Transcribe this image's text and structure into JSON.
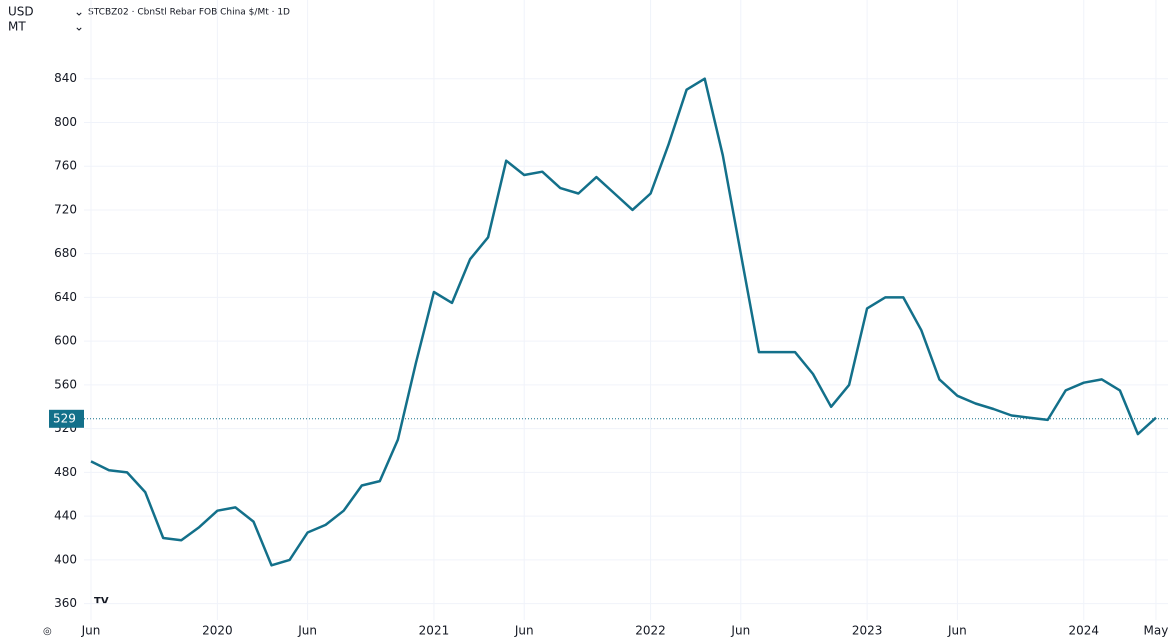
{
  "chart_data": {
    "type": "line",
    "title": "STCBZ02 · CbnStl Rebar FOB China $/Mt · 1D",
    "currency": "USD",
    "unit": "MT",
    "x": [
      "2019-06",
      "2019-07",
      "2019-08",
      "2019-09",
      "2019-10",
      "2019-11",
      "2019-12",
      "2020-01",
      "2020-02",
      "2020-03",
      "2020-04",
      "2020-05",
      "2020-06",
      "2020-07",
      "2020-08",
      "2020-09",
      "2020-10",
      "2020-11",
      "2020-12",
      "2021-01",
      "2021-02",
      "2021-03",
      "2021-04",
      "2021-05",
      "2021-06",
      "2021-07",
      "2021-08",
      "2021-09",
      "2021-10",
      "2021-11",
      "2021-12",
      "2022-01",
      "2022-02",
      "2022-03",
      "2022-04",
      "2022-05",
      "2022-06",
      "2022-07",
      "2022-08",
      "2022-09",
      "2022-10",
      "2022-11",
      "2022-12",
      "2023-01",
      "2023-02",
      "2023-03",
      "2023-04",
      "2023-05",
      "2023-06",
      "2023-07",
      "2023-08",
      "2023-09",
      "2023-10",
      "2023-11",
      "2023-12",
      "2024-01",
      "2024-02",
      "2024-03",
      "2024-04",
      "2024-05"
    ],
    "series": [
      {
        "name": "STCBZ02",
        "color": "#13708a",
        "values": [
          490,
          482,
          480,
          462,
          420,
          418,
          430,
          445,
          448,
          435,
          395,
          400,
          425,
          432,
          445,
          468,
          472,
          510,
          580,
          645,
          635,
          675,
          695,
          765,
          752,
          755,
          740,
          735,
          750,
          735,
          720,
          735,
          780,
          830,
          840,
          770,
          680,
          590,
          590,
          590,
          570,
          540,
          560,
          630,
          640,
          640,
          610,
          565,
          550,
          543,
          538,
          532,
          530,
          528,
          555,
          562,
          565,
          555,
          515,
          530
        ]
      }
    ],
    "last_value": 529,
    "ylim": [
      345,
      912
    ],
    "yticks": [
      360,
      400,
      440,
      480,
      520,
      560,
      600,
      640,
      680,
      720,
      760,
      800,
      840
    ],
    "xticks": [
      {
        "value": "2019-06",
        "label": "Jun"
      },
      {
        "value": "2020-01",
        "label": "2020"
      },
      {
        "value": "2020-06",
        "label": "Jun"
      },
      {
        "value": "2021-01",
        "label": "2021"
      },
      {
        "value": "2021-06",
        "label": "Jun"
      },
      {
        "value": "2022-01",
        "label": "2022"
      },
      {
        "value": "2022-06",
        "label": "Jun"
      },
      {
        "value": "2023-01",
        "label": "2023"
      },
      {
        "value": "2023-06",
        "label": "Jun"
      },
      {
        "value": "2024-01",
        "label": "2024"
      },
      {
        "value": "2024-05",
        "label": "May"
      }
    ],
    "grid": true
  }
}
